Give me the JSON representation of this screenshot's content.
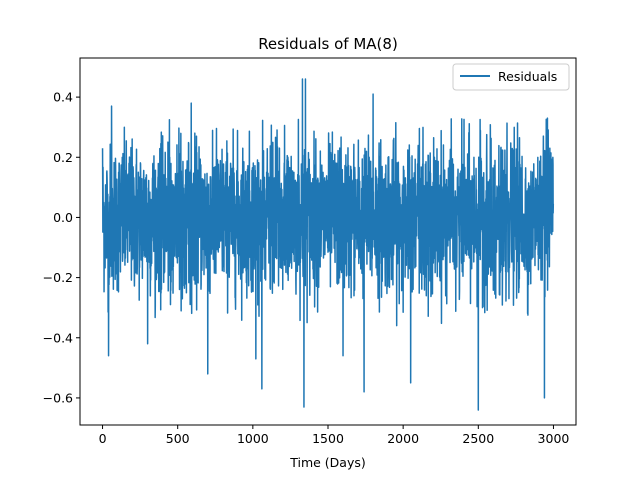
{
  "chart_data": {
    "type": "line",
    "title": "Residuals of MA(8)",
    "xlabel": "Time (Days)",
    "ylabel": "",
    "xlim": [
      -150,
      3150
    ],
    "ylim": [
      -0.69,
      0.53
    ],
    "x_ticks": [
      0,
      500,
      1000,
      1500,
      2000,
      2500,
      3000
    ],
    "x_tick_labels": [
      "0",
      "500",
      "1000",
      "1500",
      "2000",
      "2500",
      "3000"
    ],
    "y_ticks": [
      -0.6,
      -0.4,
      -0.2,
      0.0,
      0.2,
      0.4
    ],
    "y_tick_labels": [
      "−0.6",
      "−0.4",
      "−0.2",
      "0.0",
      "0.2",
      "0.4"
    ],
    "grid": false,
    "legend_position": "top-right",
    "n_points": 3000,
    "series": [
      {
        "name": "Residuals",
        "color": "#1f77b4",
        "typical_std": 0.12,
        "notable_points": [
          {
            "x": 0,
            "y": 0.23
          },
          {
            "x": 40,
            "y": -0.46
          },
          {
            "x": 60,
            "y": 0.37
          },
          {
            "x": 300,
            "y": -0.42
          },
          {
            "x": 590,
            "y": 0.38
          },
          {
            "x": 700,
            "y": -0.52
          },
          {
            "x": 1020,
            "y": -0.47
          },
          {
            "x": 1060,
            "y": -0.57
          },
          {
            "x": 1330,
            "y": 0.46
          },
          {
            "x": 1340,
            "y": -0.63
          },
          {
            "x": 1350,
            "y": 0.46
          },
          {
            "x": 1600,
            "y": -0.46
          },
          {
            "x": 1740,
            "y": -0.58
          },
          {
            "x": 1800,
            "y": 0.41
          },
          {
            "x": 2050,
            "y": -0.55
          },
          {
            "x": 2500,
            "y": -0.64
          },
          {
            "x": 2940,
            "y": -0.6
          },
          {
            "x": 2960,
            "y": 0.33
          }
        ]
      }
    ]
  }
}
